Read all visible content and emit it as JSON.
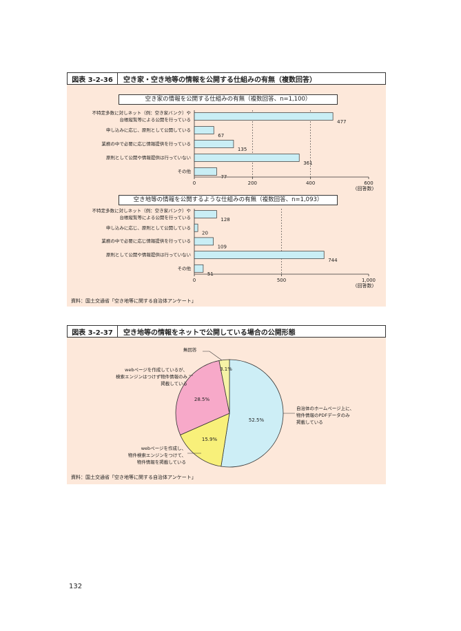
{
  "page_number": "132",
  "figures": [
    {
      "label": "図表 3-2-36",
      "title": "空き家・空き地等の情報を公開する仕組みの有無（複数回答）",
      "source": "資料：国土交通省「空き地等に関する自治体アンケート」"
    },
    {
      "label": "図表 3-2-37",
      "title": "空き地等の情報をネットで公開している場合の公開形態",
      "source": "資料：国土交通省「空き地等に関する自治体アンケート」"
    }
  ],
  "chart_data": [
    {
      "type": "bar",
      "orientation": "horizontal",
      "title": "空き家の情報を公開する仕組みの有無（複数回答、n=1,100）",
      "categories": [
        "不特定多数に対しネット（例：空き家バンク）や\n台帳縦覧等による公開を行っている",
        "申し込みに応じ、原則として公開している",
        "業務の中で必要に応じ情報提供を行っている",
        "原則として公開や情報提供は行っていない",
        "その他"
      ],
      "values": [
        477,
        67,
        135,
        361,
        77
      ],
      "color": "#c9eef5",
      "xlim": [
        0,
        600
      ],
      "xticks": [
        0,
        200,
        400,
        600
      ],
      "x_unit": "(回答数)",
      "grid": true
    },
    {
      "type": "bar",
      "orientation": "horizontal",
      "title": "空き地等の情報を公開するような仕組みの有無（複数回答、n=1,093）",
      "categories": [
        "不特定多数に対しネット（例：空き家バンク）や\n台帳縦覧等による公開を行っている",
        "申し込みに応じ、原則として公開している",
        "業務の中で必要に応じ情報提供を行っている",
        "原則として公開や情報提供は行っていない",
        "その他"
      ],
      "values": [
        128,
        20,
        109,
        744,
        51
      ],
      "color": "#c9eef5",
      "xlim": [
        0,
        1000
      ],
      "xticks": [
        0,
        500,
        {
          "value": 1000,
          "label": "1,000"
        }
      ],
      "x_unit": "(回答数)",
      "grid": true
    },
    {
      "type": "pie",
      "categories": [
        "自治体のホームページ上に、\n物件情報のPDFデータのみ\n掲載している",
        "webページを作成し、\n物件検索エンジンをつけて、\n物件情報を掲載している",
        "webページを作成しているが、\n検索エンジンはつけず物件情報のみ\n掲載している",
        "無回答"
      ],
      "values": [
        52.5,
        15.9,
        28.5,
        3.1
      ],
      "value_labels": [
        "52.5%",
        "15.9%",
        "28.5%",
        "3.1%"
      ],
      "colors": [
        "#cdeef6",
        "#f8f07a",
        "#f7a9c9",
        "#f6f3a6"
      ]
    }
  ]
}
